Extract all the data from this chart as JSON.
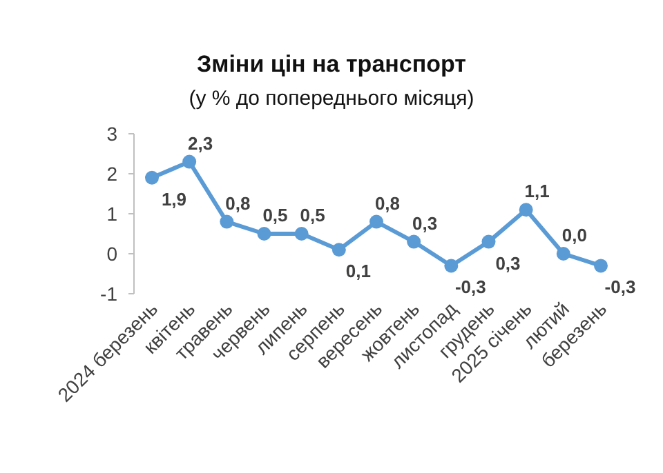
{
  "chart_data": {
    "type": "line",
    "title": "Зміни цін на транспорт",
    "subtitle": "(у % до попереднього місяця)",
    "categories": [
      "2024 березень",
      "квітень",
      "травень",
      "червень",
      "липень",
      "серпень",
      "вересень",
      "жовтень",
      "листопад",
      "грудень",
      "2025 січень",
      "лютий",
      "березень"
    ],
    "series": [
      {
        "color": "#5b9bd5",
        "values": [
          1.9,
          2.3,
          0.8,
          0.5,
          0.5,
          0.1,
          0.8,
          0.3,
          -0.3,
          0.3,
          1.1,
          0.0,
          -0.3
        ],
        "value_labels": [
          "1,9",
          "2,3",
          "0,8",
          "0,5",
          "0,5",
          "0,1",
          "0,8",
          "0,3",
          "-0,3",
          "0,3",
          "1,1",
          "0,0",
          "-0,3"
        ]
      }
    ],
    "ylim": [
      -1,
      3
    ],
    "yticks": [
      -1,
      0,
      1,
      2,
      3
    ],
    "grid": false,
    "marker": "circle",
    "line_style": "solid"
  }
}
